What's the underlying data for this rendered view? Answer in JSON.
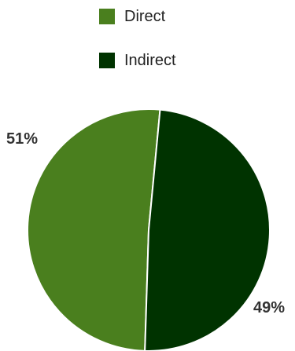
{
  "chart_data": {
    "type": "pie",
    "title": "",
    "legend_position": "top",
    "slices": [
      {
        "name": "Direct",
        "value": 51,
        "label": "51%",
        "color": "#4a7f1e"
      },
      {
        "name": "Indirect",
        "value": 49,
        "label": "49%",
        "color": "#003300"
      }
    ]
  }
}
